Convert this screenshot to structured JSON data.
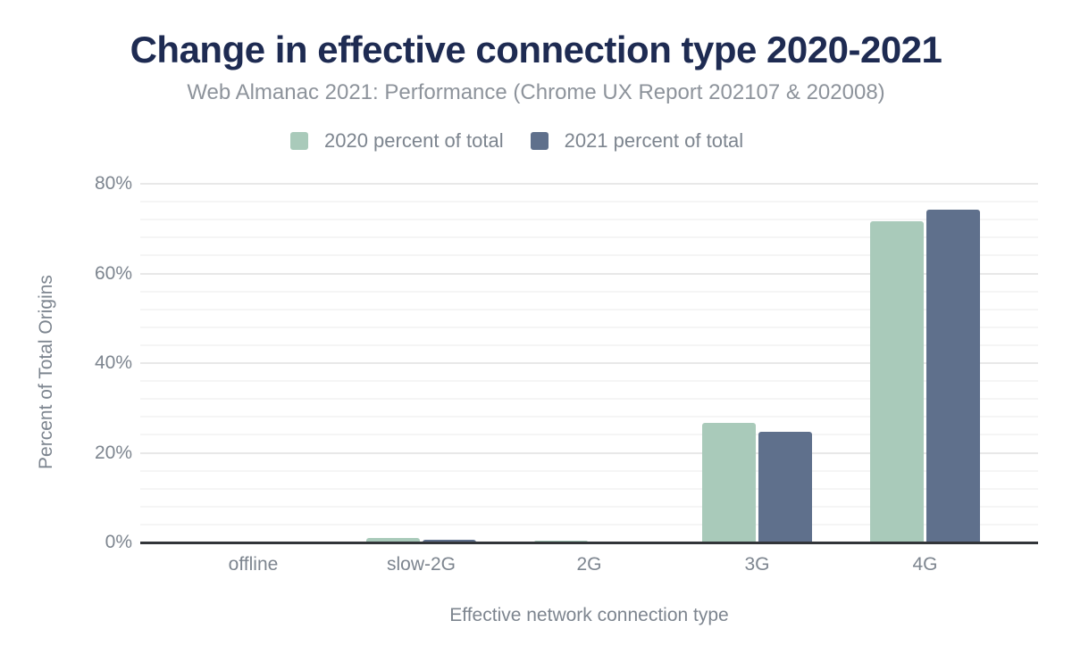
{
  "page": {
    "title": "Change in effective connection type 2020-2021",
    "subtitle": "Web Almanac 2021: Performance (Chrome UX Report 202107 & 202008)"
  },
  "chart_data": {
    "type": "bar",
    "title": "Change in effective connection type 2020-2021",
    "subtitle": "Web Almanac 2021: Performance (Chrome UX Report 202107 & 202008)",
    "categories": [
      "offline",
      "slow-2G",
      "2G",
      "3G",
      "4G"
    ],
    "series": [
      {
        "name": "2020 percent of total",
        "color": "#a9caba",
        "values": [
          0.0,
          1.0,
          0.5,
          26.6,
          71.6
        ]
      },
      {
        "name": "2021 percent of total",
        "color": "#5f708c",
        "values": [
          0.0,
          0.6,
          0.2,
          24.6,
          74.2
        ]
      }
    ],
    "xlabel": "Effective network connection type",
    "ylabel": "Percent of Total Origins",
    "ylim": [
      0,
      80
    ],
    "yticks": [
      0,
      20,
      40,
      60,
      80
    ],
    "ytick_suffix": "%",
    "minor_grid_step": 4,
    "major_grid_step": 20,
    "grid": true,
    "legend_position": "top-center",
    "colors": {
      "title": "#1e2b52",
      "subtitle": "#8d939b",
      "axis_text": "#7d858f",
      "axis_line": "#323539",
      "grid_major": "#e8e8e8",
      "grid_minor": "#f5f5f5",
      "background": "#ffffff"
    }
  }
}
